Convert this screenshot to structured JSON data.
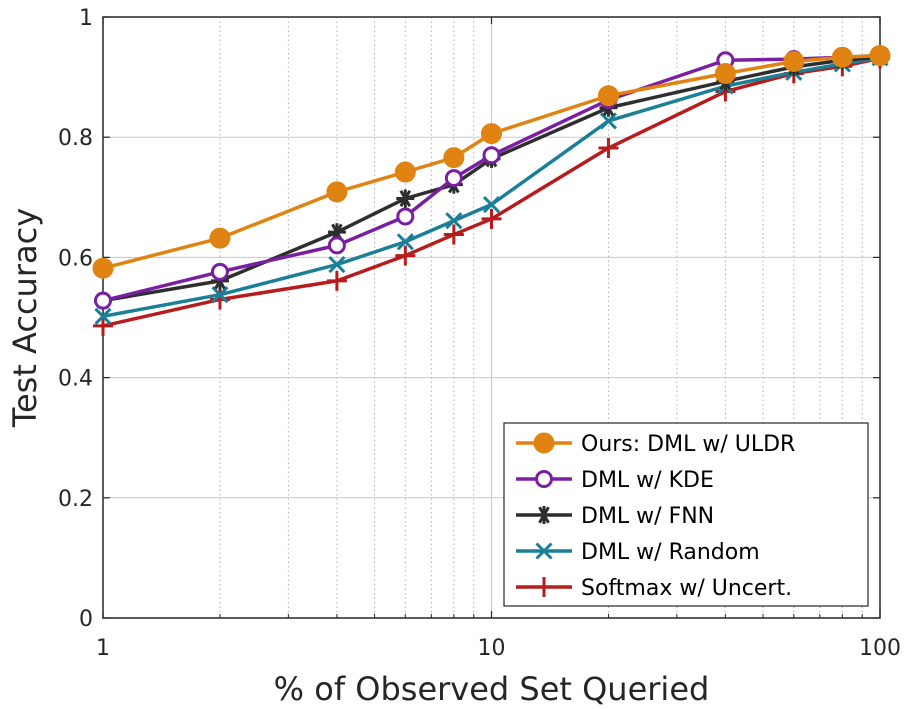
{
  "chart_data": {
    "type": "line",
    "xlabel": "% of Observed Set Queried",
    "ylabel": "Test Accuracy",
    "x_scale": "log",
    "xlim": [
      1,
      100
    ],
    "ylim": [
      0,
      1
    ],
    "x_ticks": [
      1,
      10,
      100
    ],
    "x_tick_labels": [
      "1",
      "10",
      "100"
    ],
    "y_ticks": [
      0,
      0.2,
      0.4,
      0.6,
      0.8,
      1
    ],
    "y_tick_labels": [
      "0",
      "0.2",
      "0.4",
      "0.6",
      "0.8",
      "1"
    ],
    "grid": true,
    "legend_position": "bottom-right",
    "x": [
      1,
      2,
      4,
      6,
      8,
      10,
      20,
      40,
      60,
      80,
      100
    ],
    "series": [
      {
        "name": "Ours: DML w/ ULDR",
        "color": "#e08312",
        "marker": "filled-circle",
        "values": [
          0.582,
          0.632,
          0.709,
          0.742,
          0.766,
          0.806,
          0.869,
          0.906,
          0.926,
          0.933,
          0.936
        ]
      },
      {
        "name": "DML w/ KDE",
        "color": "#7b1fa2",
        "marker": "open-circle",
        "values": [
          0.528,
          0.576,
          0.62,
          0.668,
          0.732,
          0.77,
          0.862,
          0.928,
          0.93,
          0.933,
          0.936
        ]
      },
      {
        "name": "DML w/ FNN",
        "color": "#2e2e2e",
        "marker": "asterisk",
        "values": [
          0.528,
          0.561,
          0.642,
          0.698,
          0.721,
          0.764,
          0.849,
          0.893,
          0.917,
          0.928,
          0.933
        ]
      },
      {
        "name": "DML w/ Random",
        "color": "#1a7f97",
        "marker": "cross",
        "values": [
          0.502,
          0.538,
          0.588,
          0.626,
          0.661,
          0.688,
          0.827,
          0.885,
          0.908,
          0.922,
          0.932
        ]
      },
      {
        "name": "Softmax w/ Uncert.",
        "color": "#b71c1c",
        "marker": "plus",
        "values": [
          0.486,
          0.53,
          0.561,
          0.603,
          0.638,
          0.664,
          0.782,
          0.876,
          0.906,
          0.918,
          0.931
        ]
      }
    ]
  }
}
